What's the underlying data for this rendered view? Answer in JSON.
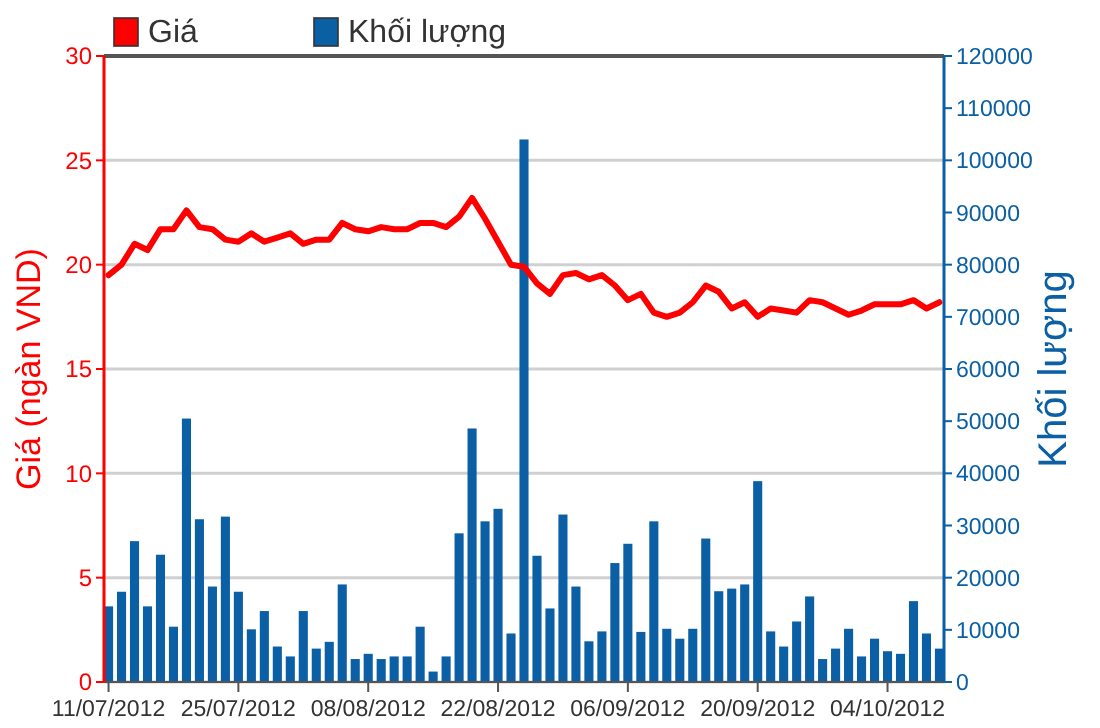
{
  "chart_data": {
    "type": "bar",
    "ylabel": "Giá (ngàn VND)",
    "y2label": "Khối lượng",
    "categories": [
      "11/07/2012",
      null,
      null,
      null,
      null,
      null,
      null,
      null,
      null,
      null,
      "25/07/2012",
      null,
      null,
      null,
      null,
      null,
      null,
      null,
      null,
      null,
      "08/08/2012",
      null,
      null,
      null,
      null,
      null,
      null,
      null,
      null,
      null,
      "22/08/2012",
      null,
      null,
      null,
      null,
      null,
      null,
      null,
      null,
      null,
      "06/09/2012",
      null,
      null,
      null,
      null,
      null,
      null,
      null,
      null,
      null,
      "20/09/2012",
      null,
      null,
      null,
      null,
      null,
      null,
      null,
      null,
      null,
      "04/10/2012",
      null,
      null,
      null,
      null
    ],
    "ylim": [
      0,
      30
    ],
    "yticks": [
      0,
      5,
      10,
      15,
      20,
      25,
      30
    ],
    "y2lim": [
      0,
      120000
    ],
    "y2ticks": [
      0,
      10000,
      20000,
      30000,
      40000,
      50000,
      60000,
      70000,
      80000,
      90000,
      100000,
      110000,
      120000
    ],
    "grid": "y",
    "legend": "top left",
    "series": [
      {
        "name": "Giá",
        "type": "line",
        "color": "#ff0000",
        "values": [
          19.5,
          20.0,
          21.0,
          20.7,
          21.7,
          21.7,
          22.6,
          21.8,
          21.7,
          21.2,
          21.1,
          21.5,
          21.1,
          21.3,
          21.5,
          21.0,
          21.2,
          21.2,
          22.0,
          21.7,
          21.6,
          21.8,
          21.7,
          21.7,
          22.0,
          22.0,
          21.8,
          22.3,
          23.2,
          22.2,
          21.1,
          20.0,
          19.9,
          19.1,
          18.6,
          19.5,
          19.6,
          19.3,
          19.5,
          19.0,
          18.3,
          18.6,
          17.7,
          17.5,
          17.7,
          18.2,
          19.0,
          18.7,
          17.9,
          18.2,
          17.5,
          17.9,
          17.8,
          17.7,
          18.3,
          18.2,
          17.9,
          17.6,
          17.8,
          18.1,
          18.1,
          18.1,
          18.3,
          17.9,
          18.2
        ]
      },
      {
        "name": "Khối lượng",
        "axis": "y2",
        "color": "#0a5fa5",
        "values": [
          14500,
          17300,
          27000,
          14500,
          24400,
          10600,
          50500,
          31200,
          18300,
          31700,
          17300,
          10100,
          13600,
          6800,
          4900,
          13600,
          6400,
          7700,
          18700,
          4400,
          5400,
          4400,
          4900,
          4900,
          10600,
          2000,
          4900,
          28500,
          48600,
          30800,
          33200,
          9300,
          104000,
          24200,
          14100,
          32100,
          18300,
          7800,
          9700,
          22800,
          26500,
          9600,
          30800,
          10200,
          8300,
          10200,
          27500,
          17400,
          17900,
          18700,
          38500,
          9700,
          6800,
          11600,
          16400,
          4400,
          6400,
          10200,
          4900,
          8300,
          5900,
          5400,
          15500,
          9300,
          6400
        ]
      }
    ]
  }
}
